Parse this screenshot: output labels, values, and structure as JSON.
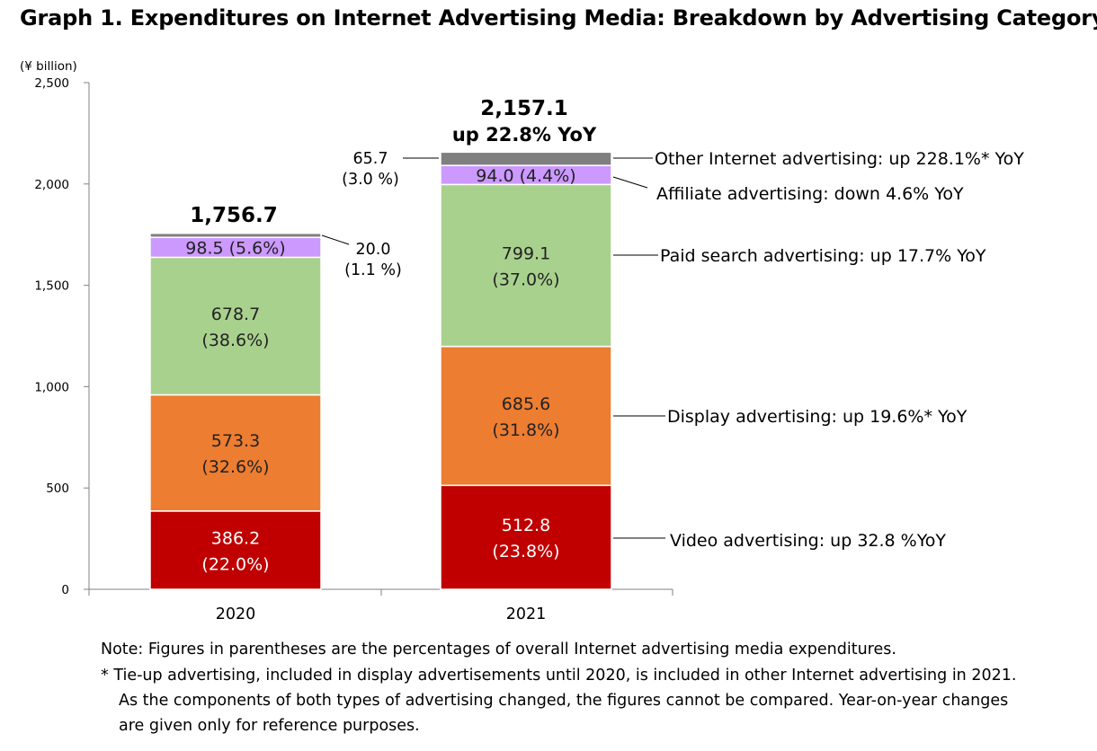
{
  "chart_data": {
    "type": "bar",
    "stacked": true,
    "title": "Graph 1. Expenditures on Internet Advertising Media: Breakdown by Advertising Category",
    "ylabel": "(¥ billion)",
    "ylim": [
      0,
      2500
    ],
    "yticks": [
      0,
      500,
      1000,
      1500,
      2000,
      2500
    ],
    "ytick_labels": [
      "0",
      "500",
      "1,000",
      "1,500",
      "2,000",
      "2,500"
    ],
    "categories": [
      "2020",
      "2021"
    ],
    "totals": [
      1756.7,
      2157.1
    ],
    "total_labels": [
      "1,756.7",
      "2,157.1"
    ],
    "total_sublabels": [
      "",
      "up 22.8% YoY"
    ],
    "series": [
      {
        "key": "video",
        "values": [
          386.2,
          512.8
        ],
        "color": "#C00000",
        "text_color": "#FFFFFF",
        "labels": [
          [
            "386.2",
            "(22.0%)"
          ],
          [
            "512.8",
            "(23.8%)"
          ]
        ],
        "annotation": "Video advertising: up 32.8 %YoY"
      },
      {
        "key": "display",
        "values": [
          573.3,
          685.6
        ],
        "color": "#ED7D31",
        "text_color": "#222222",
        "labels": [
          [
            "573.3",
            "(32.6%)"
          ],
          [
            "685.6",
            "(31.8%)"
          ]
        ],
        "annotation": "Display advertising: up 19.6%* YoY"
      },
      {
        "key": "paid-search",
        "values": [
          678.7,
          799.1
        ],
        "color": "#A9D18E",
        "text_color": "#222222",
        "labels": [
          [
            "678.7",
            "(38.6%)"
          ],
          [
            "799.1",
            "(37.0%)"
          ]
        ],
        "annotation": "Paid search advertising: up 17.7% YoY"
      },
      {
        "key": "affiliate",
        "values": [
          98.5,
          94.0
        ],
        "color": "#CC99FF",
        "text_color": "#222222",
        "labels": [
          [
            "98.5 (5.6%)"
          ],
          [
            "94.0 (4.4%)"
          ]
        ],
        "annotation": "Affiliate advertising: down 4.6% YoY"
      },
      {
        "key": "other",
        "values": [
          20.0,
          65.7
        ],
        "color": "#7F7F7F",
        "text_color": "#222222",
        "labels": [
          [
            "20.0",
            "(1.1 %)"
          ],
          [
            "65.7",
            "(3.0 %)"
          ]
        ],
        "annotation": "Other Internet advertising: up 228.1%* YoY"
      }
    ]
  },
  "notes": {
    "line1": "Note: Figures in parentheses are the percentages of overall Internet advertising media expenditures.",
    "line2": "* Tie-up advertising, included in display advertisements until 2020, is included in other Internet advertising in 2021.",
    "line3": "As the components of both types of advertising changed, the figures cannot be compared. Year-on-year changes",
    "line4": "are given only for reference purposes."
  }
}
